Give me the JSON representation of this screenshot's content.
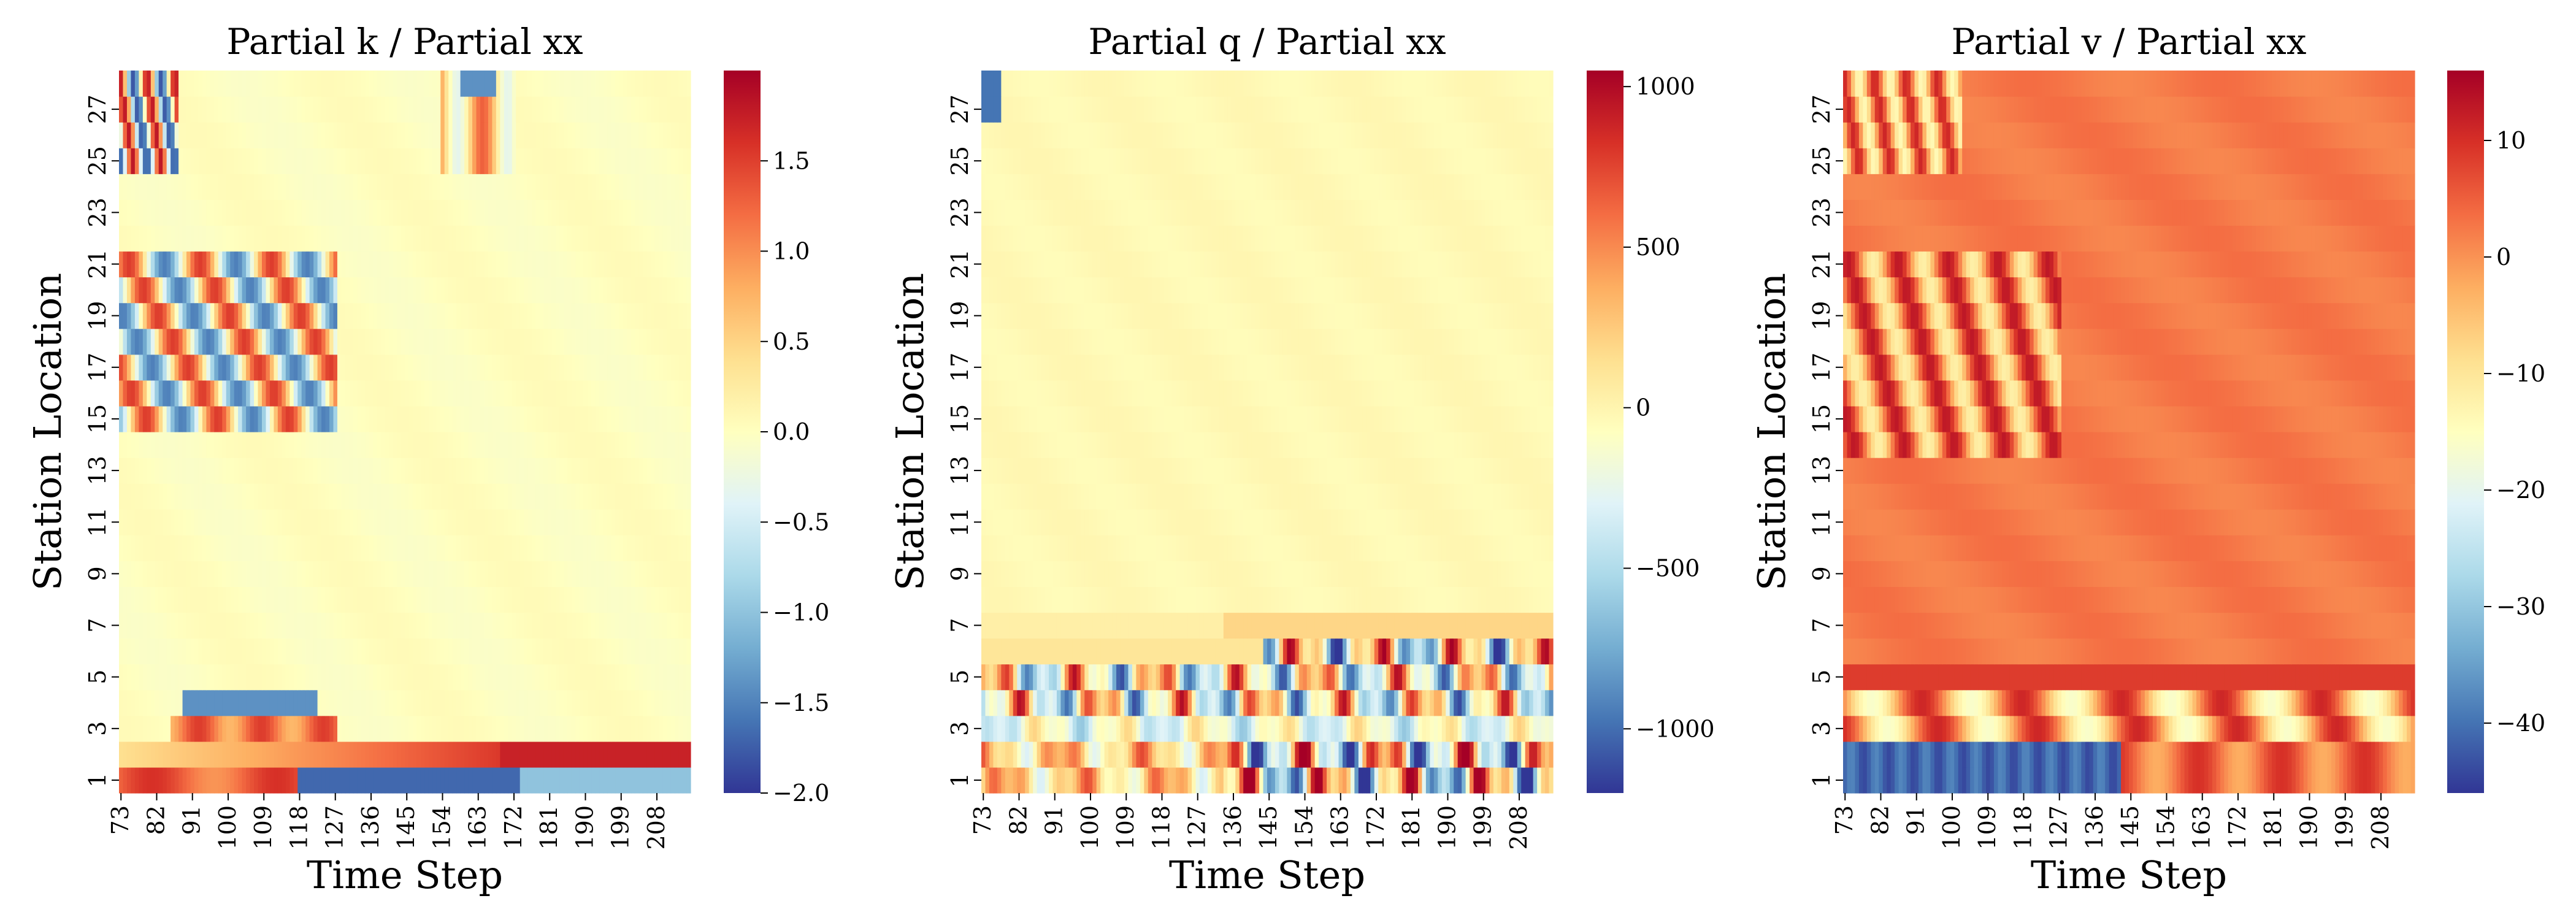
{
  "chart_data": [
    {
      "type": "heatmap",
      "title": "Partial k / Partial xx",
      "xlabel": "Time Step",
      "ylabel": "Station Location",
      "x_ticks": [
        "73",
        "82",
        "91",
        "100",
        "109",
        "118",
        "127",
        "136",
        "145",
        "154",
        "163",
        "172",
        "181",
        "190",
        "199",
        "208"
      ],
      "y_ticks": [
        "1",
        "3",
        "5",
        "7",
        "9",
        "11",
        "13",
        "15",
        "17",
        "19",
        "21",
        "23",
        "25",
        "27"
      ],
      "colorbar_ticks": [
        "1.5",
        "1.0",
        "0.5",
        "0.0",
        "−0.5",
        "−1.0",
        "−1.5",
        "−2.0"
      ],
      "colorbar_tick_values": [
        1.5,
        1.0,
        0.5,
        0.0,
        -0.5,
        -1.0,
        -1.5,
        -2.0
      ],
      "vmin": -2.0,
      "vmax": 2.0,
      "colormap": "RdYlBu_r"
    },
    {
      "type": "heatmap",
      "title": "Partial q / Partial xx",
      "xlabel": "Time Step",
      "ylabel": "Station Location",
      "x_ticks": [
        "73",
        "82",
        "91",
        "100",
        "109",
        "118",
        "127",
        "136",
        "145",
        "154",
        "163",
        "172",
        "181",
        "190",
        "199",
        "208"
      ],
      "y_ticks": [
        "1",
        "3",
        "5",
        "7",
        "9",
        "11",
        "13",
        "15",
        "17",
        "19",
        "21",
        "23",
        "25",
        "27"
      ],
      "colorbar_ticks": [
        "1000",
        "500",
        "0",
        "−500",
        "−1000"
      ],
      "colorbar_tick_values": [
        1000,
        500,
        0,
        -500,
        -1000
      ],
      "vmin": -1200,
      "vmax": 1050,
      "colormap": "RdYlBu_r"
    },
    {
      "type": "heatmap",
      "title": "Partial v / Partial xx",
      "xlabel": "Time Step",
      "ylabel": "Station Location",
      "x_ticks": [
        "73",
        "82",
        "91",
        "100",
        "109",
        "118",
        "127",
        "136",
        "145",
        "154",
        "163",
        "172",
        "181",
        "190",
        "199",
        "208"
      ],
      "y_ticks": [
        "1",
        "3",
        "5",
        "7",
        "9",
        "11",
        "13",
        "15",
        "17",
        "19",
        "21",
        "23",
        "25",
        "27"
      ],
      "colorbar_ticks": [
        "10",
        "0",
        "−10",
        "−20",
        "−30",
        "−40"
      ],
      "colorbar_tick_values": [
        10,
        0,
        -10,
        -20,
        -30,
        -40
      ],
      "vmin": -46,
      "vmax": 16,
      "colormap": "RdYlBu_r"
    }
  ]
}
